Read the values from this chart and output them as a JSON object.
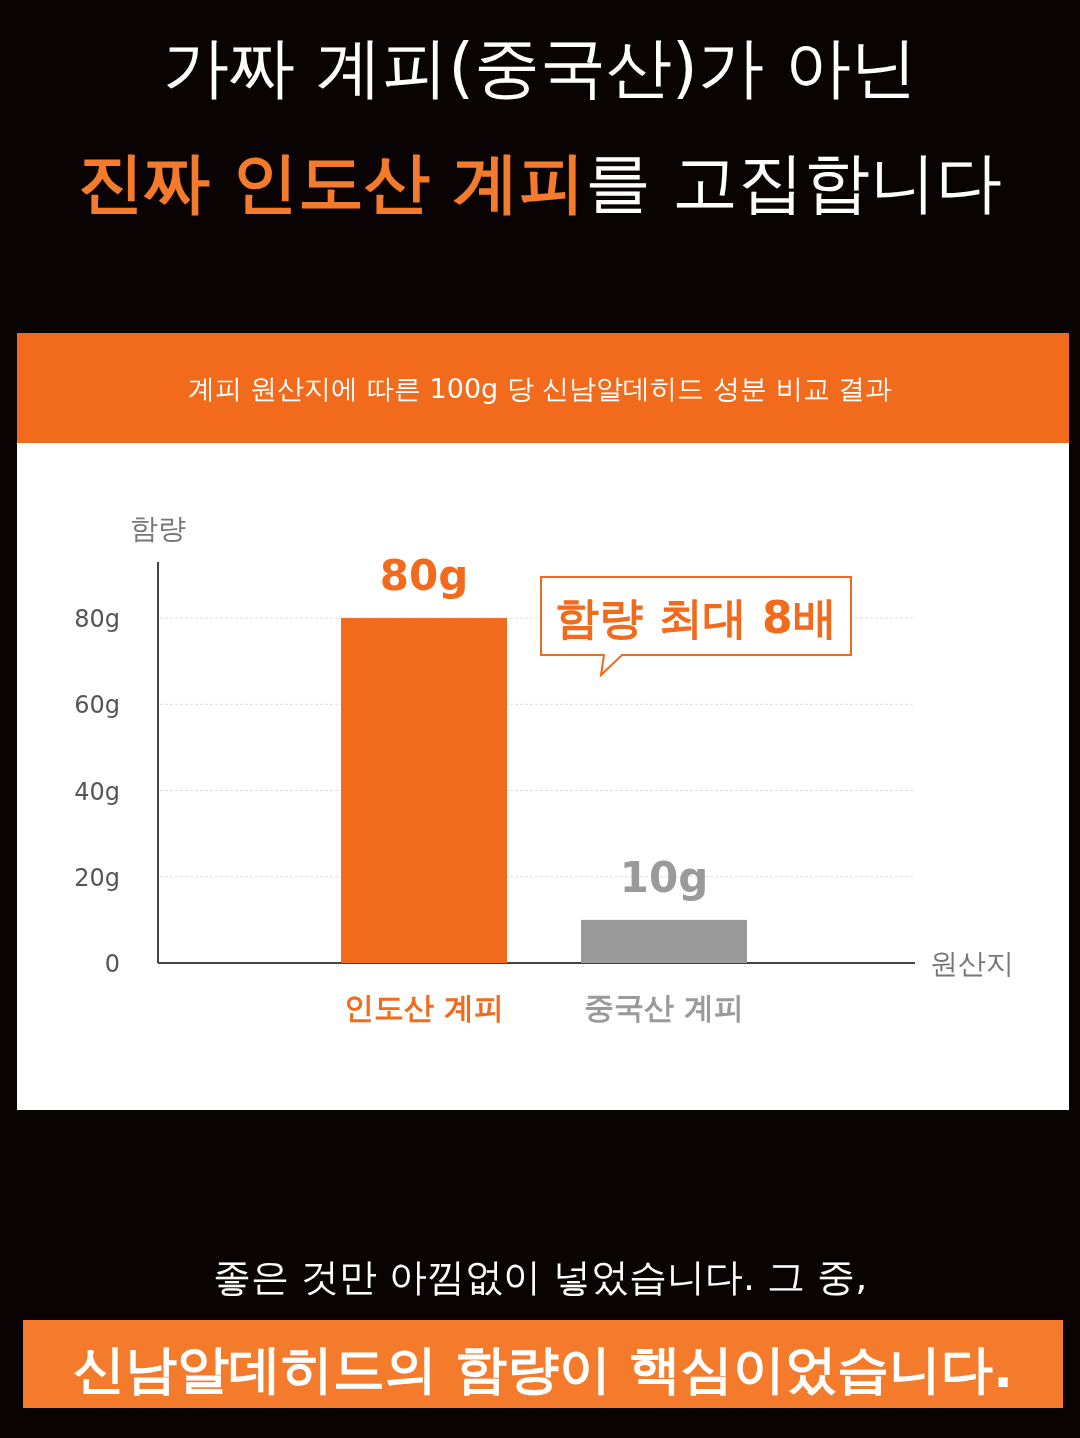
{
  "chart_data": {
    "type": "bar",
    "title": "가짜 계피(중국산)가 아닌",
    "subtitle": "**진짜 인도산 계피**를 고집합니다",
    "xlabel": "원산지",
    "ylabel": "함량",
    "categories": [
      "인도산 계피",
      "중국산 계피"
    ],
    "values": [
      80,
      10
    ],
    "colors": [
      "#f26a1b",
      "#9a9a9a"
    ],
    "value_labels": [
      "80g",
      "10g"
    ],
    "ylim": [
      0,
      93
    ],
    "yticks": [
      {
        "value": 0,
        "label": "0"
      },
      {
        "value": 20,
        "label": "20g"
      },
      {
        "value": 40,
        "label": "40g"
      },
      {
        "value": 60,
        "label": "60g"
      },
      {
        "value": 80,
        "label": "80g"
      }
    ],
    "grid": "y",
    "annotations": [
      "계피 원산지에 따른 100g 당 신남알데히드 성분 비교 결과",
      "함량 최대 8배",
      "좋은 것만 아낌없이 넣었습니다. 그 중,",
      "신남알데히드의 함량이 핵심이었습니다."
    ]
  }
}
